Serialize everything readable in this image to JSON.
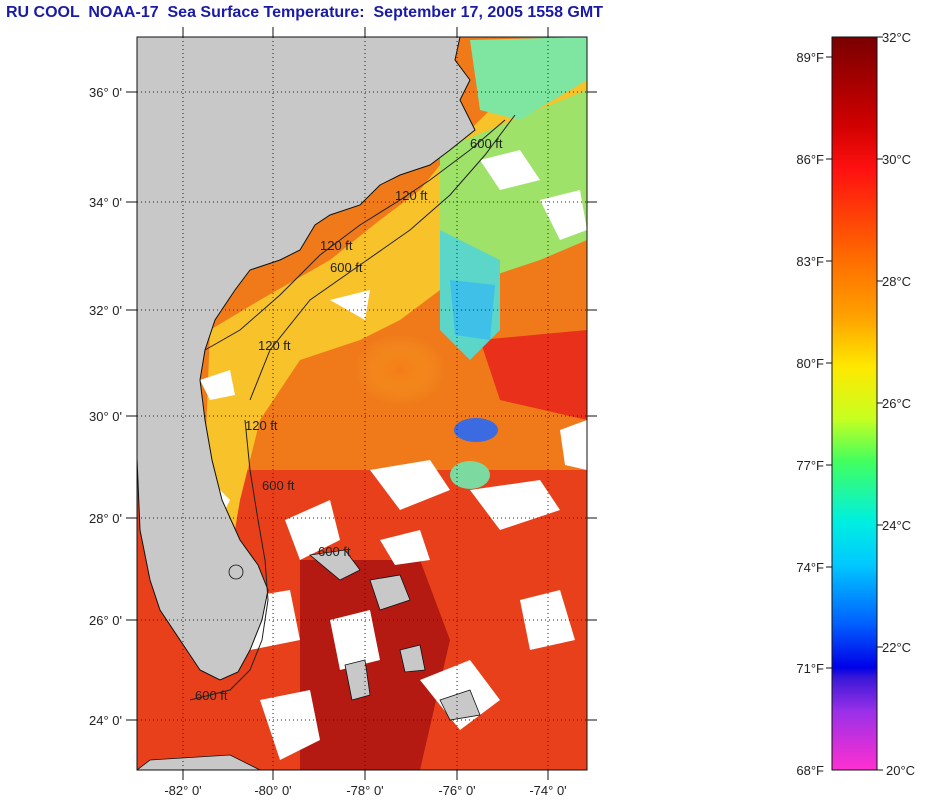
{
  "title": "RU COOL  NOAA-17  Sea Surface Temperature:  September 17, 2005 1558 GMT",
  "map": {
    "lat_labels": [
      "36° 0'",
      "34° 0'",
      "32° 0'",
      "30° 0'",
      "28° 0'",
      "26° 0'",
      "24° 0'"
    ],
    "lon_labels": [
      "-82° 0'",
      "-80° 0'",
      "-78° 0'",
      "-76° 0'",
      "-74° 0'"
    ],
    "isobath_labels": [
      "120 ft",
      "600 ft",
      "120 ft",
      "600 ft",
      "120 ft",
      "600 ft",
      "600 ft",
      "120 ft",
      "600 ft"
    ],
    "colors": {
      "land": "#c8c8c8",
      "cloud": "#ffffff",
      "warm": "#e83a10",
      "hot": "#b01010",
      "mid": "#f7c22a",
      "cool": "#3fd7e0",
      "cold": "#2040e0"
    }
  },
  "colorbar": {
    "fahrenheit_labels": [
      "89°F",
      "86°F",
      "83°F",
      "80°F",
      "77°F",
      "74°F",
      "71°F",
      "68°F"
    ],
    "celsius_labels": [
      "32°C",
      "30°C",
      "28°C",
      "26°C",
      "24°C",
      "22°C",
      "20°C"
    ]
  }
}
